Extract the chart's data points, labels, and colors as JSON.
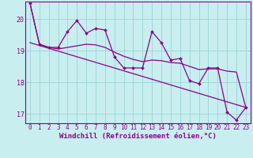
{
  "xlabel": "Windchill (Refroidissement éolien,°C)",
  "xlim": [
    -0.5,
    23.5
  ],
  "ylim": [
    16.7,
    20.55
  ],
  "xticks": [
    0,
    1,
    2,
    3,
    4,
    5,
    6,
    7,
    8,
    9,
    10,
    11,
    12,
    13,
    14,
    15,
    16,
    17,
    18,
    19,
    20,
    21,
    22,
    23
  ],
  "yticks": [
    17,
    18,
    19,
    20
  ],
  "bg_color": "#c8eef0",
  "line_color": "#8b008b",
  "grid_color": "#a0d8d8",
  "hours": [
    0,
    1,
    2,
    3,
    4,
    5,
    6,
    7,
    8,
    9,
    10,
    11,
    12,
    13,
    14,
    15,
    16,
    17,
    18,
    19,
    20,
    21,
    22,
    23
  ],
  "data_line": [
    20.5,
    19.2,
    19.1,
    19.1,
    19.6,
    19.95,
    19.55,
    19.7,
    19.65,
    18.8,
    18.45,
    18.45,
    18.45,
    19.6,
    19.25,
    18.7,
    18.75,
    18.05,
    17.95,
    18.45,
    18.45,
    17.05,
    16.8,
    17.2
  ],
  "smooth_line": [
    20.5,
    19.2,
    19.1,
    19.05,
    19.1,
    19.15,
    19.2,
    19.18,
    19.1,
    18.95,
    18.82,
    18.72,
    18.65,
    18.7,
    18.68,
    18.62,
    18.6,
    18.5,
    18.4,
    18.42,
    18.42,
    18.35,
    18.32,
    17.2
  ],
  "trend_line": [
    [
      0,
      23
    ],
    [
      19.25,
      17.2
    ]
  ],
  "xlabel_fontsize": 6.5,
  "tick_fontsize": 5.5
}
